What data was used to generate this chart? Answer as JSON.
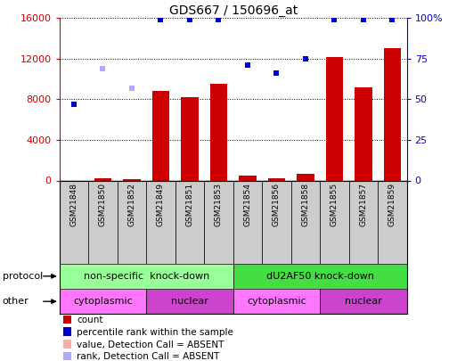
{
  "title": "GDS667 / 150696_at",
  "samples": [
    "GSM21848",
    "GSM21850",
    "GSM21852",
    "GSM21849",
    "GSM21851",
    "GSM21853",
    "GSM21854",
    "GSM21856",
    "GSM21858",
    "GSM21855",
    "GSM21857",
    "GSM21859"
  ],
  "bar_values": [
    0,
    200,
    150,
    8800,
    8200,
    9500,
    500,
    200,
    700,
    12200,
    9200,
    13000
  ],
  "bar_absent": [
    true,
    false,
    false,
    false,
    false,
    false,
    false,
    false,
    false,
    false,
    false,
    false
  ],
  "rank_values": [
    47,
    69,
    57,
    99,
    99,
    99,
    71,
    66,
    75,
    99,
    99,
    99
  ],
  "rank_absent": [
    false,
    true,
    true,
    false,
    false,
    false,
    false,
    false,
    false,
    false,
    false,
    false
  ],
  "ylim_left": [
    0,
    16000
  ],
  "ylim_right": [
    0,
    100
  ],
  "yticks_left": [
    0,
    4000,
    8000,
    12000,
    16000
  ],
  "yticks_right": [
    0,
    25,
    50,
    75,
    100
  ],
  "ytick_labels_left": [
    "0",
    "4000",
    "8000",
    "12000",
    "16000"
  ],
  "ytick_labels_right": [
    "0",
    "25",
    "50",
    "75",
    "100%"
  ],
  "bar_color": "#cc0000",
  "bar_absent_color": "#ffaaaa",
  "rank_color": "#0000cc",
  "rank_absent_color": "#aaaaff",
  "protocol_groups": [
    {
      "label": "non-specific  knock-down",
      "start": 0,
      "end": 6,
      "color": "#99ff99"
    },
    {
      "label": "dU2AF50 knock-down",
      "start": 6,
      "end": 12,
      "color": "#44dd44"
    }
  ],
  "other_groups": [
    {
      "label": "cytoplasmic",
      "start": 0,
      "end": 3,
      "color": "#ff77ff"
    },
    {
      "label": "nuclear",
      "start": 3,
      "end": 6,
      "color": "#cc44cc"
    },
    {
      "label": "cytoplasmic",
      "start": 6,
      "end": 9,
      "color": "#ff77ff"
    },
    {
      "label": "nuclear",
      "start": 9,
      "end": 12,
      "color": "#cc44cc"
    }
  ],
  "legend_items": [
    {
      "label": "count",
      "color": "#cc0000"
    },
    {
      "label": "percentile rank within the sample",
      "color": "#0000cc"
    },
    {
      "label": "value, Detection Call = ABSENT",
      "color": "#ffaaaa"
    },
    {
      "label": "rank, Detection Call = ABSENT",
      "color": "#aaaaff"
    }
  ],
  "tick_label_color_left": "#cc0000",
  "tick_label_color_right": "#0000cc",
  "sample_col_color": "#cccccc"
}
